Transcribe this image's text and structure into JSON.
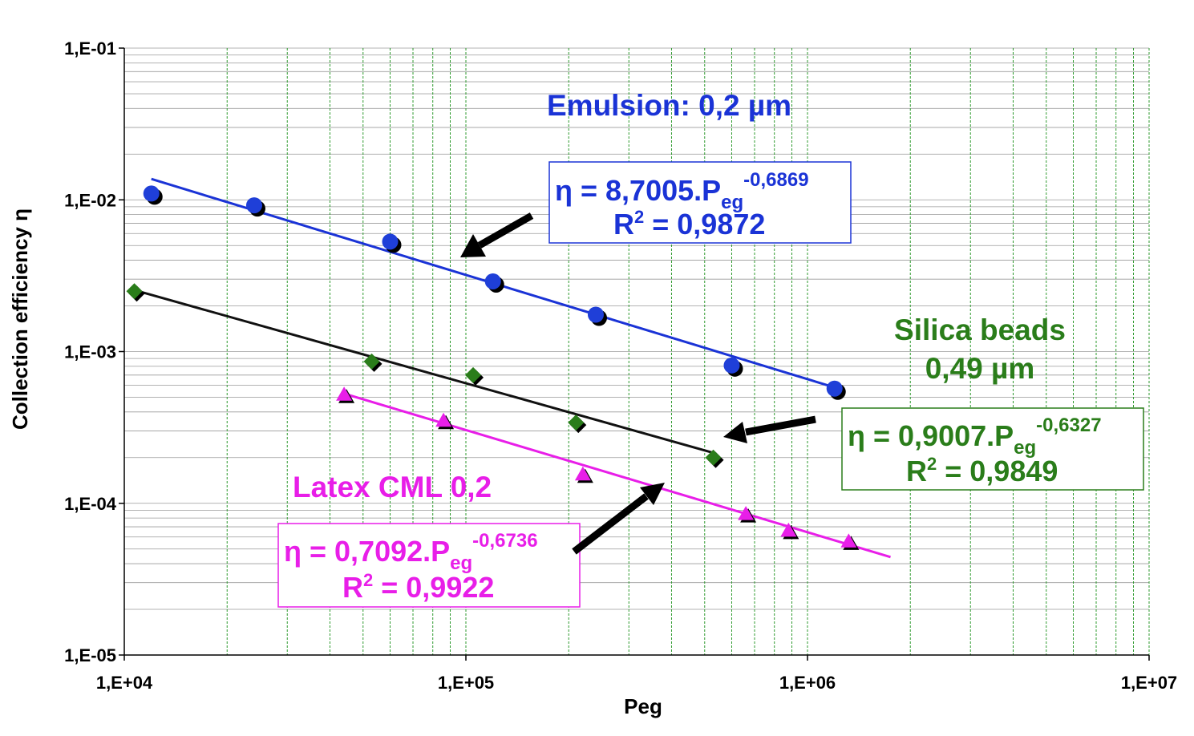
{
  "chart_data": {
    "type": "scatter",
    "title": "",
    "xlabel": "Peg",
    "ylabel": "Collection efficiency η",
    "xscale": "log",
    "yscale": "log",
    "xlim": [
      10000,
      10000000
    ],
    "ylim": [
      1e-05,
      0.1
    ],
    "x_tick_labels": [
      "1,E+04",
      "1,E+05",
      "1,E+06",
      "1,E+07"
    ],
    "y_tick_labels": [
      "1,E-05",
      "1,E-04",
      "1,E-03",
      "1,E-02",
      "1,E-01"
    ],
    "grid": true,
    "series": [
      {
        "name": "Emulsion:  0,2 µm",
        "marker": "circle",
        "color": "#1f3fd8",
        "x": [
          12000,
          24000,
          60000,
          120000,
          240000,
          600000,
          1200000
        ],
        "y": [
          0.011,
          0.0092,
          0.0053,
          0.0029,
          0.00175,
          0.00081,
          0.00057
        ],
        "fit": {
          "a": 8.7005,
          "b": -0.6869,
          "x_range": [
            12000,
            1210000
          ],
          "color": "#1a33d6"
        }
      },
      {
        "name": "Silica beads 0,49 µm",
        "marker": "diamond",
        "color": "#2a7d1a",
        "x": [
          10700,
          53000,
          105000,
          210000,
          530000
        ],
        "y": [
          0.0025,
          0.00086,
          0.0007,
          0.00034,
          0.0002
        ],
        "fit": {
          "a": 0.9007,
          "b": -0.6327,
          "x_range": [
            10700,
            530000
          ],
          "color": "#111111"
        }
      },
      {
        "name": "Latex CML 0,2",
        "marker": "triangle",
        "color": "#e81ee8",
        "x": [
          44000,
          86000,
          220000,
          660000,
          880000,
          1320000
        ],
        "y": [
          0.00052,
          0.00035,
          0.000155,
          8.5e-05,
          6.6e-05,
          5.6e-05
        ],
        "fit": {
          "a": 0.7092,
          "b": -0.6736,
          "x_range": [
            44000,
            1750000
          ],
          "color": "#e81ee8"
        }
      }
    ],
    "annotations": {
      "emulsion_label": "Emulsion:  0,2 µm",
      "emulsion_eq_main": "η = 8,7005.P",
      "emulsion_eq_sub": "eg",
      "emulsion_eq_exp": "-0,6869",
      "emulsion_r2_a": "R",
      "emulsion_r2_exp": "2",
      "emulsion_r2_b": " = 0,9872",
      "silica_label_1": "Silica beads",
      "silica_label_2": "0,49 µm",
      "silica_eq_main": "η = 0,9007.P",
      "silica_eq_sub": "eg",
      "silica_eq_exp": "-0,6327",
      "silica_r2_a": "R",
      "silica_r2_exp": "2",
      "silica_r2_b": " = 0,9849",
      "latex_label": "Latex CML 0,2",
      "latex_eq_main": "η = 0,7092.P",
      "latex_eq_sub": "eg",
      "latex_eq_exp": "-0,6736",
      "latex_r2_a": "R",
      "latex_r2_exp": "2",
      "latex_r2_b": " = 0,9922"
    }
  }
}
